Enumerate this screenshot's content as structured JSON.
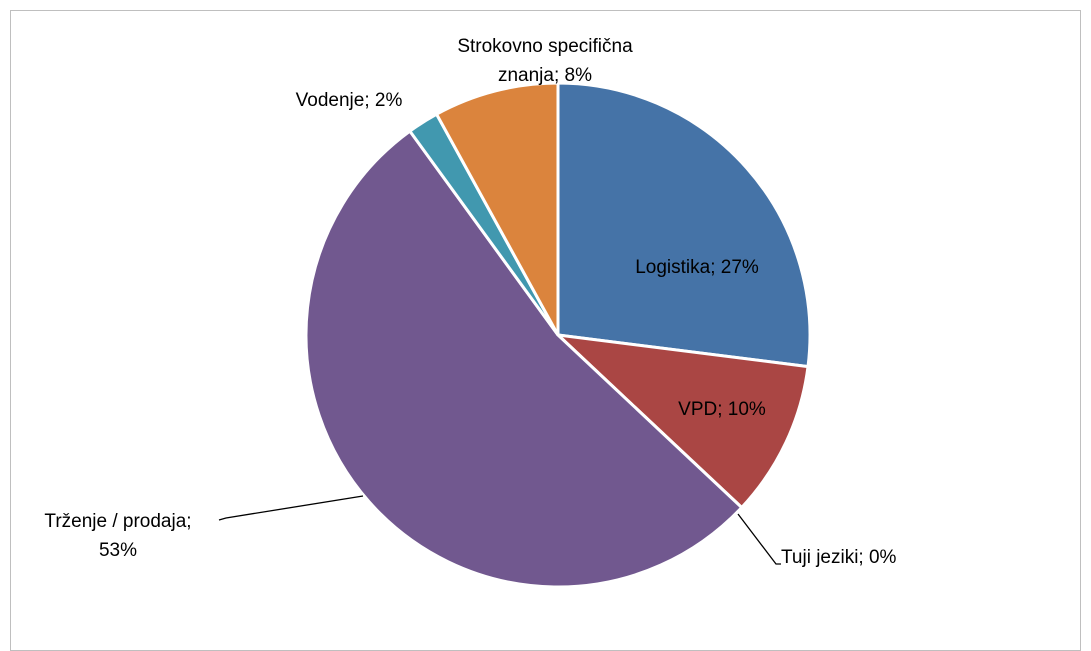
{
  "chart_data": {
    "type": "pie",
    "values": [
      27,
      10,
      0,
      53,
      2,
      8
    ],
    "value_labels": [
      "Logistika; 27%",
      "VPD; 10%",
      "Tuji jeziki; 0%",
      "Trženje / prodaja;\n53%",
      "Vodenje; 2%",
      "Strokovno specifična\nznanja; 8%"
    ],
    "colors": [
      "#4573a7",
      "#aa4644",
      "#89a54e",
      "#71588f",
      "#4198af",
      "#db843d"
    ]
  }
}
